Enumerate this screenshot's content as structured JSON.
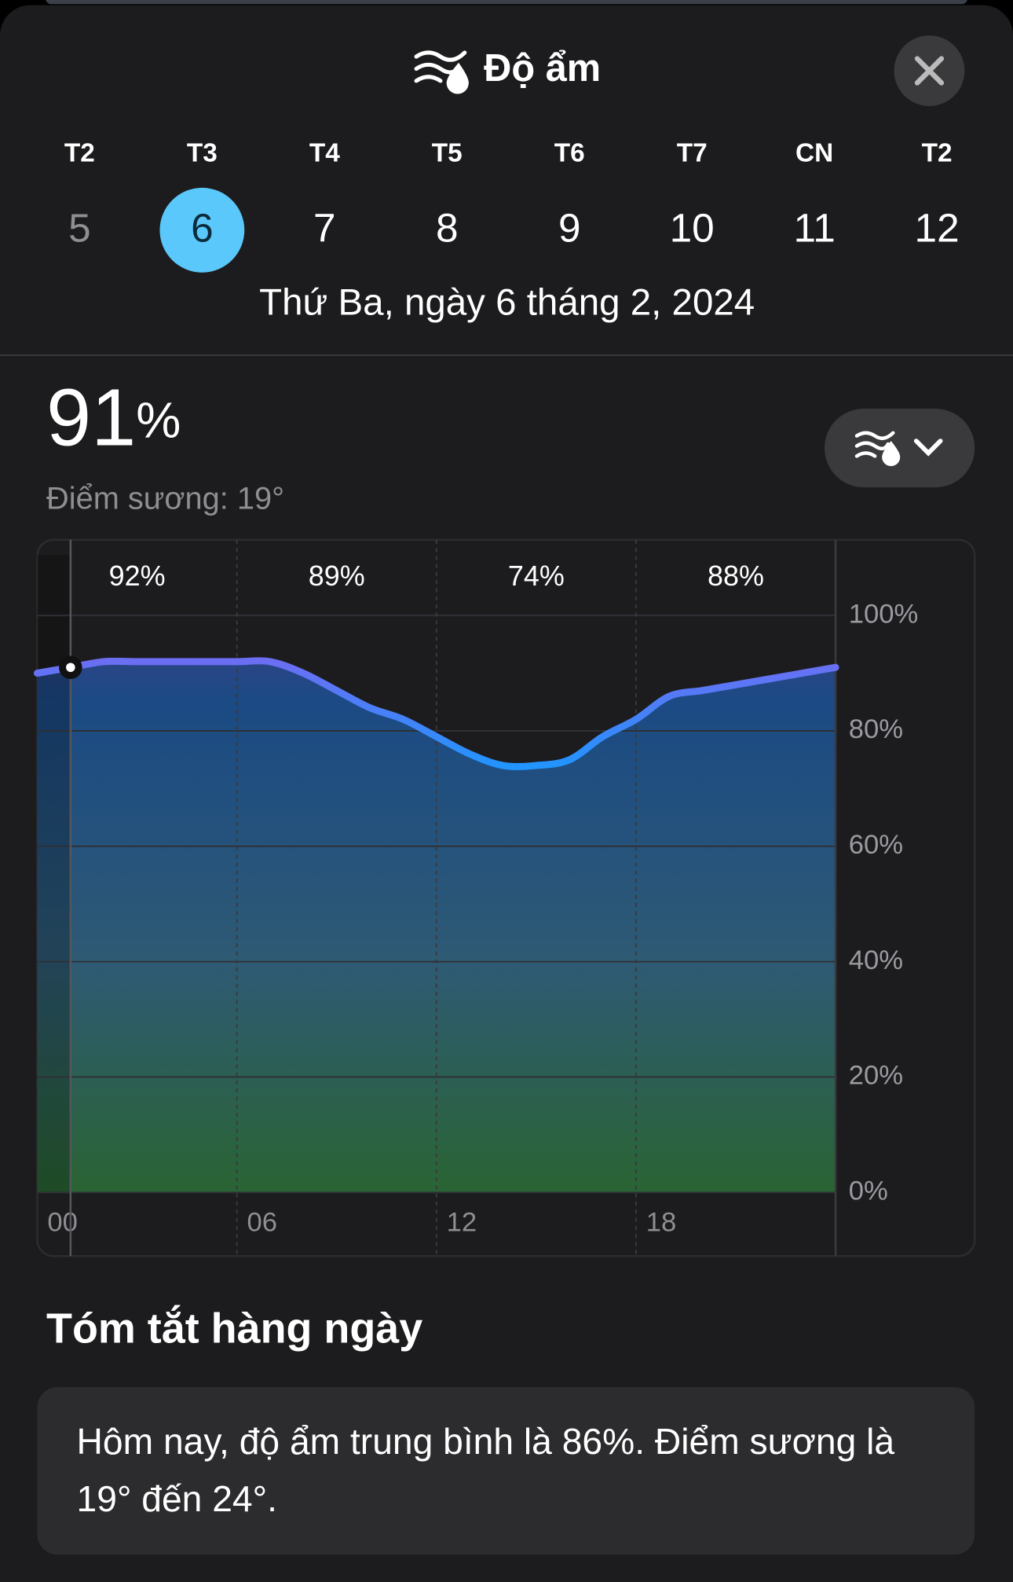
{
  "header": {
    "title": "Độ ẩm"
  },
  "days": [
    {
      "weekday": "T2",
      "day": 5
    },
    {
      "weekday": "T3",
      "day": 6,
      "selected": true
    },
    {
      "weekday": "T4",
      "day": 7
    },
    {
      "weekday": "T5",
      "day": 8
    },
    {
      "weekday": "T6",
      "day": 9
    },
    {
      "weekday": "T7",
      "day": 10
    },
    {
      "weekday": "CN",
      "day": 11
    },
    {
      "weekday": "T2",
      "day": 12
    }
  ],
  "selected_date": "Thứ Ba, ngày 6 tháng 2, 2024",
  "current": {
    "value": "91",
    "unit": "%",
    "dew_point": "Điểm sương: 19°"
  },
  "chart": {
    "type": "line",
    "x": [
      0,
      1,
      2,
      3,
      4,
      5,
      6,
      7,
      8,
      9,
      10,
      11,
      12,
      13,
      14,
      15,
      16,
      17,
      18,
      19,
      20,
      21,
      22,
      23,
      24
    ],
    "values": [
      90,
      91,
      92,
      92,
      92,
      92,
      92,
      92,
      90,
      87,
      84,
      82,
      79,
      76,
      74,
      74,
      75,
      79,
      82,
      86,
      87,
      88,
      89,
      90,
      91
    ],
    "period_labels": [
      "92%",
      "89%",
      "74%",
      "88%"
    ],
    "xlim": [
      0,
      24
    ],
    "xticks": [
      {
        "value": 0,
        "label": "00"
      },
      {
        "value": 6,
        "label": "06"
      },
      {
        "value": 12,
        "label": "12"
      },
      {
        "value": 18,
        "label": "18"
      }
    ],
    "ylim": [
      0,
      100
    ],
    "yticks": [
      {
        "value": 0,
        "label": "0%"
      },
      {
        "value": 20,
        "label": "20%"
      },
      {
        "value": 40,
        "label": "40%"
      },
      {
        "value": 60,
        "label": "60%"
      },
      {
        "value": 80,
        "label": "80%"
      },
      {
        "value": 100,
        "label": "100%"
      }
    ],
    "grid": true
  },
  "summary": {
    "title": "Tóm tắt hàng ngày",
    "text": "Hôm nay, độ ẩm trung bình là 86%. Điểm sương là 19° đến 24°."
  }
}
